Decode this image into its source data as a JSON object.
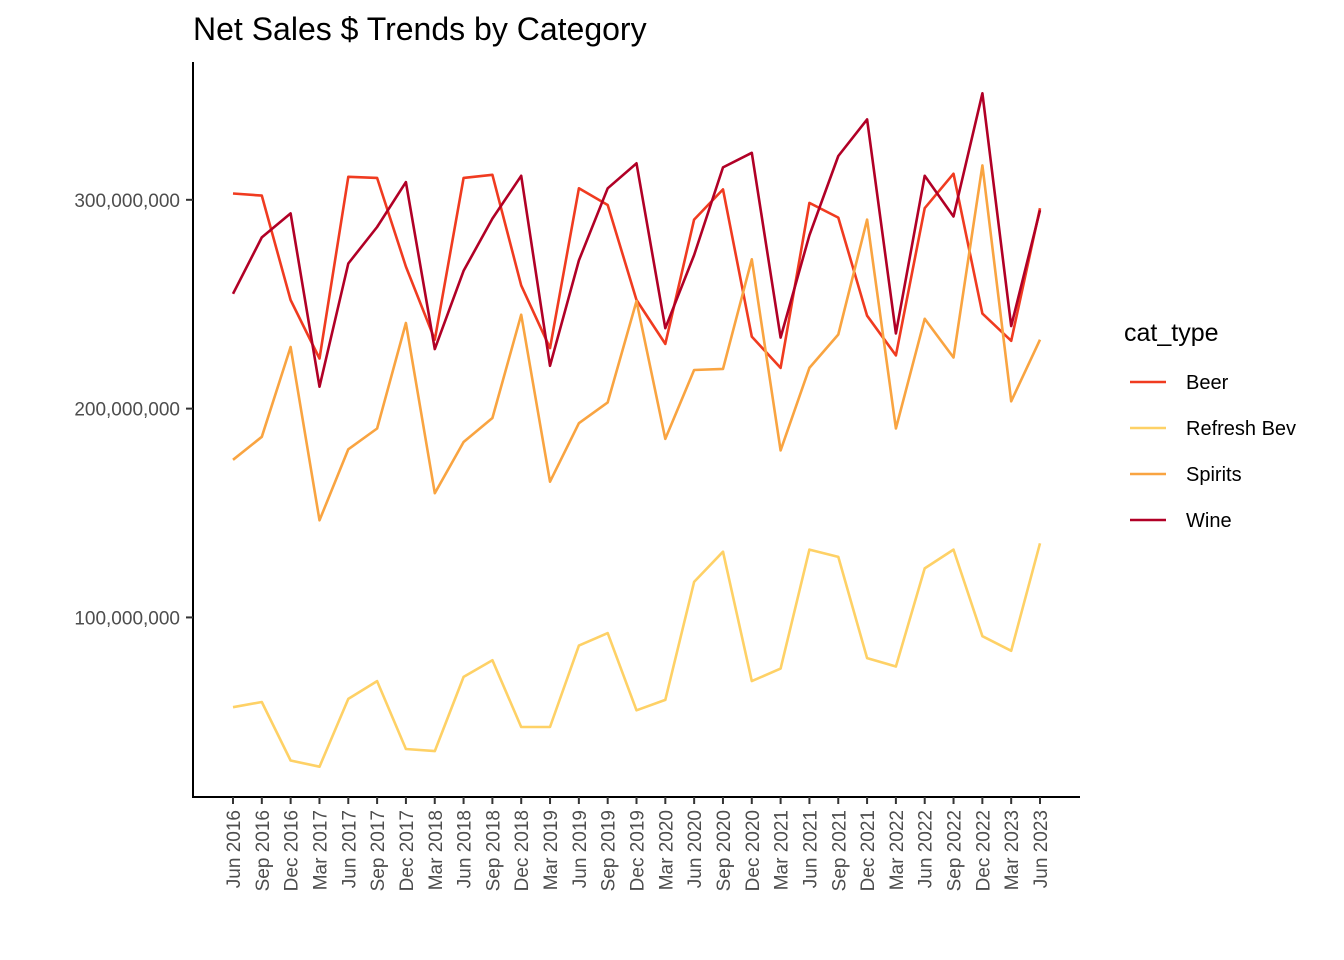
{
  "chart_data": {
    "type": "line",
    "title": "Net Sales $ Trends by Category",
    "xlabel": "",
    "ylabel": "",
    "x": [
      "Jun 2016",
      "Sep 2016",
      "Dec 2016",
      "Mar 2017",
      "Jun 2017",
      "Sep 2017",
      "Dec 2017",
      "Mar 2018",
      "Jun 2018",
      "Sep 2018",
      "Dec 2018",
      "Mar 2019",
      "Jun 2019",
      "Sep 2019",
      "Dec 2019",
      "Mar 2020",
      "Jun 2020",
      "Sep 2020",
      "Dec 2020",
      "Mar 2021",
      "Jun 2021",
      "Sep 2021",
      "Dec 2021",
      "Mar 2022",
      "Jun 2022",
      "Sep 2022",
      "Dec 2022",
      "Mar 2023",
      "Jun 2023"
    ],
    "ylim": [
      14000000,
      366000000
    ],
    "yticks": [
      100000000,
      200000000,
      300000000
    ],
    "ytick_labels": [
      "100,000,000",
      "200,000,000",
      "300,000,000"
    ],
    "grid": false,
    "legend": {
      "title": "cat_type",
      "position": "right"
    },
    "series": [
      {
        "name": "Beer",
        "color": "#f03b20",
        "values": [
          303000000,
          302000000,
          252000000,
          224000000,
          311000000,
          310500000,
          268000000,
          233000000,
          310500000,
          312000000,
          259000000,
          229000000,
          305500000,
          297500000,
          252000000,
          231000000,
          290500000,
          305000000,
          234500000,
          219500000,
          298500000,
          291500000,
          244500000,
          225500000,
          296000000,
          312500000,
          245500000,
          232500000,
          296000000
        ]
      },
      {
        "name": "Refresh Bev",
        "color": "#fed166",
        "values": [
          57000000,
          59500000,
          31500000,
          28500000,
          61000000,
          69500000,
          37000000,
          36000000,
          71500000,
          79500000,
          47500000,
          47500000,
          86500000,
          92500000,
          55500000,
          60500000,
          117000000,
          131500000,
          69500000,
          75500000,
          132500000,
          129000000,
          80500000,
          76500000,
          123500000,
          132500000,
          91000000,
          84000000,
          135500000
        ]
      },
      {
        "name": "Spirits",
        "color": "#f9a441",
        "values": [
          175500000,
          186500000,
          229500000,
          146500000,
          180500000,
          190500000,
          241000000,
          159500000,
          184000000,
          195500000,
          245000000,
          165000000,
          193000000,
          203000000,
          251500000,
          185500000,
          218500000,
          219000000,
          271500000,
          180000000,
          219500000,
          235500000,
          290500000,
          190500000,
          243000000,
          224500000,
          316500000,
          203500000,
          233000000
        ]
      },
      {
        "name": "Wine",
        "color": "#b10026",
        "values": [
          255000000,
          282000000,
          293500000,
          210500000,
          269500000,
          287000000,
          308500000,
          228500000,
          266000000,
          291000000,
          311500000,
          220500000,
          271000000,
          305500000,
          317500000,
          238500000,
          273500000,
          315500000,
          322500000,
          234000000,
          283000000,
          321000000,
          338500000,
          236000000,
          311500000,
          292000000,
          351000000,
          239500000,
          295000000
        ]
      }
    ]
  }
}
